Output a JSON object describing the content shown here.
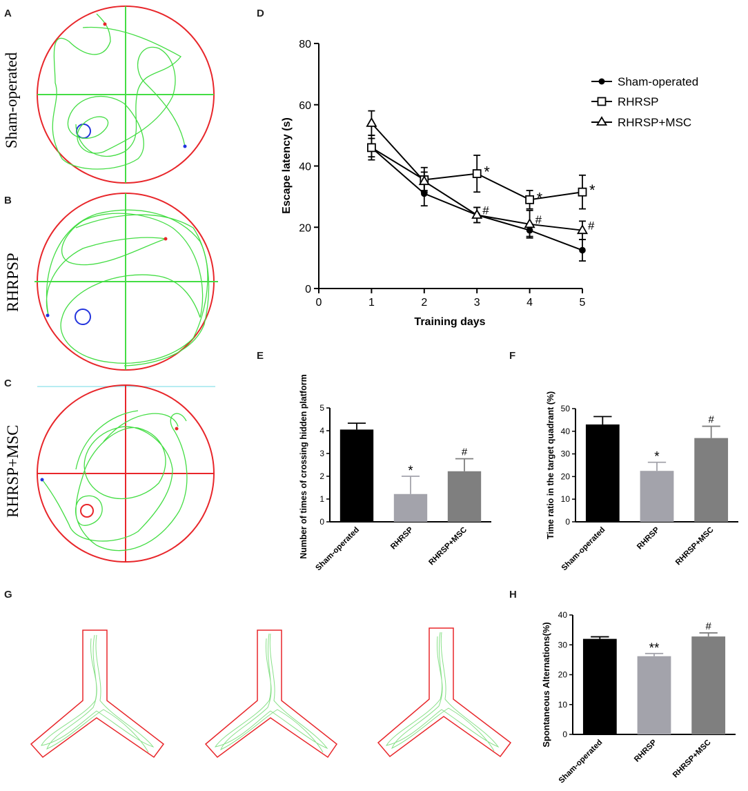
{
  "panels": {
    "A": {
      "letter": "A",
      "group": "Sham-operated"
    },
    "B": {
      "letter": "B",
      "group": "RHRPSP"
    },
    "C": {
      "letter": "C",
      "group": "RHRSP+MSC"
    },
    "D": {
      "letter": "D"
    },
    "E": {
      "letter": "E"
    },
    "F": {
      "letter": "F"
    },
    "G": {
      "letter": "G"
    },
    "H": {
      "letter": "H"
    }
  },
  "colors": {
    "black": "#000000",
    "light_gray": "#a3a3ab",
    "mid_gray": "#7f7f7f",
    "track": "#44dd44",
    "pool_red": "#e8262a",
    "platform_blue": "#2233dd",
    "maze_red": "#e8262a"
  },
  "chart_data": [
    {
      "id": "D",
      "type": "line",
      "xlabel": "Training days",
      "ylabel": "Escape latency (s)",
      "xlim": [
        0,
        5
      ],
      "ylim": [
        0,
        80
      ],
      "xticks": [
        0,
        1,
        2,
        3,
        4,
        5
      ],
      "yticks": [
        0,
        20,
        40,
        60,
        80
      ],
      "x": [
        1,
        2,
        3,
        4,
        5
      ],
      "series": [
        {
          "name": "Sham-operated",
          "marker": "circle",
          "values": [
            46,
            31,
            24,
            19,
            12.5
          ],
          "err": [
            3,
            4,
            2.5,
            2,
            3.5
          ],
          "annotations": [
            "",
            "",
            "",
            "",
            ""
          ]
        },
        {
          "name": "RHRSP",
          "marker": "square",
          "values": [
            46,
            35.5,
            37.5,
            29,
            31.5
          ],
          "err": [
            4,
            4,
            6,
            3,
            5.5
          ],
          "annotations": [
            "",
            "",
            "*",
            "*",
            "*"
          ]
        },
        {
          "name": "RHRSP+MSC",
          "marker": "triangle",
          "values": [
            54,
            35,
            24,
            21,
            19
          ],
          "err": [
            4,
            3,
            2.5,
            4.5,
            3
          ],
          "annotations": [
            "",
            "",
            "#",
            "#",
            "#"
          ]
        }
      ]
    },
    {
      "id": "E",
      "type": "bar",
      "ylabel": "Number of times of crossing hidden platform",
      "categories": [
        "Sham-operated",
        "RHRSP",
        "RHRSP+MSC"
      ],
      "values": [
        4.05,
        1.22,
        2.22
      ],
      "err": [
        0.28,
        0.78,
        0.55
      ],
      "annotations": [
        "",
        "*",
        "#"
      ],
      "ylim": [
        0,
        5
      ],
      "yticks": [
        0,
        1,
        2,
        3,
        4,
        5
      ]
    },
    {
      "id": "F",
      "type": "bar",
      "ylabel": "Time ratio in the target quadrant (%)",
      "categories": [
        "Sham-operated",
        "RHRSP",
        "RHRSP+MSC"
      ],
      "values": [
        43,
        22.5,
        37
      ],
      "err": [
        3.5,
        3.8,
        5.2
      ],
      "annotations": [
        "",
        "*",
        "#"
      ],
      "ylim": [
        0,
        50
      ],
      "yticks": [
        0,
        10,
        20,
        30,
        40,
        50
      ]
    },
    {
      "id": "H",
      "type": "bar",
      "ylabel": "Spontaneous Alternations(%)",
      "categories": [
        "Sham-operated",
        "RHRSP",
        "RHRSP+MSC"
      ],
      "values": [
        32,
        26.2,
        32.8
      ],
      "err": [
        0.7,
        0.9,
        1.2
      ],
      "annotations": [
        "",
        "**",
        "#"
      ],
      "ylim": [
        0,
        40
      ],
      "yticks": [
        0,
        10,
        20,
        30,
        40
      ]
    }
  ]
}
